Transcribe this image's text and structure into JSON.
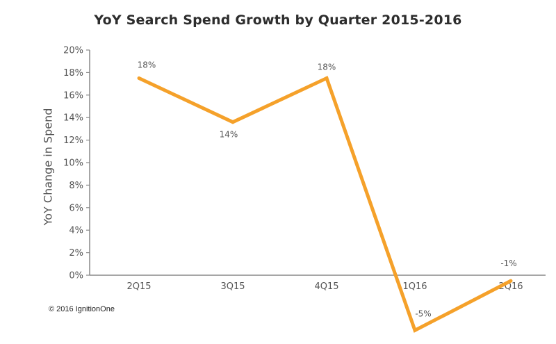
{
  "copyright": "© 2016 IgnitionOne",
  "chart_data": {
    "type": "line",
    "title": "YoY Search Spend Growth by Quarter 2015-2016",
    "xlabel": "",
    "ylabel": "YoY Change in Spend",
    "categories": [
      "2Q15",
      "3Q15",
      "4Q15",
      "1Q16",
      "2Q16"
    ],
    "series": [
      {
        "values": [
          17.5,
          13.6,
          17.5,
          -4.9,
          -0.5
        ],
        "labels": [
          "18%",
          "14%",
          "18%",
          "-5%",
          "-1%"
        ]
      }
    ],
    "ylim": [
      0,
      20
    ],
    "yticks": [
      "0%",
      "2%",
      "4%",
      "6%",
      "8%",
      "10%",
      "12%",
      "14%",
      "16%",
      "18%",
      "20%"
    ],
    "line_color": "#f5a12a",
    "axis_color": "#888888",
    "grid": false,
    "legend": "none"
  }
}
